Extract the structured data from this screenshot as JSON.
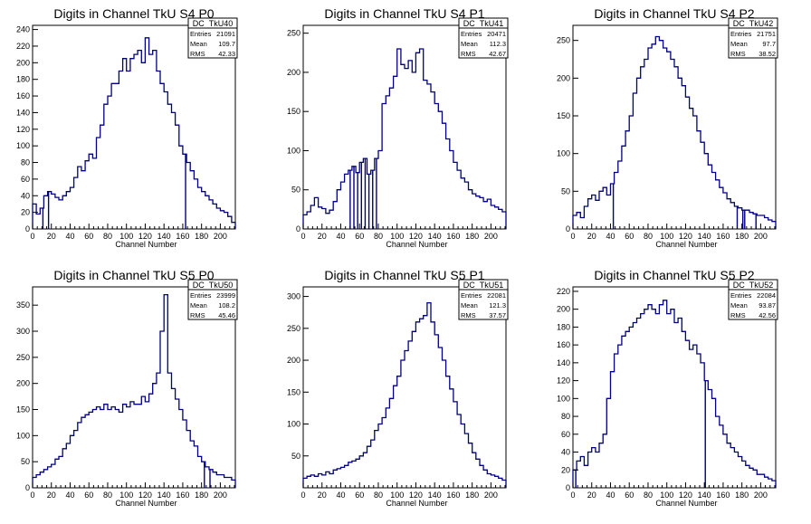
{
  "colors": {
    "line": "#00007f",
    "frame": "#000000",
    "background": "#ffffff"
  },
  "chart_data": [
    {
      "type": "histogram",
      "title": "Digits in Channel TkU S4 P0",
      "xlabel": "Channel Number",
      "ylabel": "",
      "xlim": [
        0,
        216
      ],
      "ylim": [
        0,
        245
      ],
      "xticks": [
        0,
        20,
        40,
        60,
        80,
        100,
        120,
        140,
        160,
        180,
        200
      ],
      "yticks": [
        0,
        20,
        40,
        60,
        80,
        100,
        120,
        140,
        160,
        180,
        200,
        220,
        240
      ],
      "stats": {
        "name": "DC_TkU40",
        "rows": [
          [
            "Entries",
            "21091"
          ],
          [
            "Mean",
            "109.7"
          ],
          [
            "RMS",
            "42.33"
          ]
        ]
      },
      "x": [
        0,
        4,
        8,
        12,
        16,
        20,
        24,
        28,
        32,
        36,
        40,
        44,
        48,
        52,
        56,
        60,
        64,
        68,
        72,
        76,
        80,
        84,
        88,
        92,
        96,
        100,
        104,
        108,
        112,
        116,
        120,
        124,
        128,
        132,
        136,
        140,
        144,
        148,
        152,
        156,
        160,
        164,
        168,
        172,
        176,
        180,
        184,
        188,
        192,
        196,
        200,
        204,
        208,
        212
      ],
      "values": [
        30,
        18,
        25,
        40,
        45,
        42,
        38,
        35,
        40,
        45,
        50,
        62,
        75,
        70,
        82,
        90,
        85,
        110,
        125,
        150,
        160,
        175,
        175,
        190,
        205,
        190,
        205,
        210,
        215,
        200,
        230,
        210,
        215,
        190,
        175,
        165,
        150,
        140,
        125,
        100,
        90,
        80,
        70,
        60,
        50,
        45,
        40,
        35,
        30,
        25,
        22,
        20,
        15,
        8
      ],
      "spikes_down": [
        11,
        17,
        163
      ]
    },
    {
      "type": "histogram",
      "title": "Digits in Channel TkU S4 P1",
      "xlabel": "Channel Number",
      "ylabel": "",
      "xlim": [
        0,
        216
      ],
      "ylim": [
        0,
        260
      ],
      "xticks": [
        0,
        20,
        40,
        60,
        80,
        100,
        120,
        140,
        160,
        180,
        200
      ],
      "yticks": [
        0,
        50,
        100,
        150,
        200,
        250
      ],
      "stats": {
        "name": "DC_TkU41",
        "rows": [
          [
            "Entries",
            "20471"
          ],
          [
            "Mean",
            "112.3"
          ],
          [
            "RMS",
            "42.67"
          ]
        ]
      },
      "x": [
        0,
        4,
        8,
        12,
        16,
        20,
        24,
        28,
        32,
        36,
        40,
        44,
        48,
        52,
        56,
        60,
        64,
        68,
        72,
        76,
        80,
        84,
        88,
        92,
        96,
        100,
        104,
        108,
        112,
        116,
        120,
        124,
        128,
        132,
        136,
        140,
        144,
        148,
        152,
        156,
        160,
        164,
        168,
        172,
        176,
        180,
        184,
        188,
        192,
        196,
        200,
        204,
        208,
        212
      ],
      "values": [
        18,
        22,
        30,
        40,
        28,
        26,
        20,
        24,
        35,
        50,
        60,
        70,
        75,
        80,
        72,
        85,
        90,
        70,
        75,
        90,
        100,
        160,
        170,
        180,
        195,
        230,
        210,
        205,
        215,
        200,
        225,
        230,
        190,
        185,
        175,
        160,
        150,
        135,
        115,
        100,
        85,
        75,
        65,
        60,
        50,
        45,
        42,
        40,
        35,
        38,
        30,
        28,
        25,
        22
      ],
      "spikes_down": [
        50,
        54,
        58,
        62,
        66,
        70,
        74,
        78
      ]
    },
    {
      "type": "histogram",
      "title": "Digits in Channel TkU S4 P2",
      "xlabel": "Channel Number",
      "ylabel": "",
      "xlim": [
        0,
        216
      ],
      "ylim": [
        0,
        270
      ],
      "xticks": [
        0,
        20,
        40,
        60,
        80,
        100,
        120,
        140,
        160,
        180,
        200
      ],
      "yticks": [
        0,
        50,
        100,
        150,
        200,
        250
      ],
      "stats": {
        "name": "DC_TkU42",
        "rows": [
          [
            "Entries",
            "21751"
          ],
          [
            "Mean",
            "97.7"
          ],
          [
            "RMS",
            "38.52"
          ]
        ]
      },
      "x": [
        0,
        4,
        8,
        12,
        16,
        20,
        24,
        28,
        32,
        36,
        40,
        44,
        48,
        52,
        56,
        60,
        64,
        68,
        72,
        76,
        80,
        84,
        88,
        92,
        96,
        100,
        104,
        108,
        112,
        116,
        120,
        124,
        128,
        132,
        136,
        140,
        144,
        148,
        152,
        156,
        160,
        164,
        168,
        172,
        176,
        180,
        184,
        188,
        192,
        196,
        200,
        204,
        208,
        212
      ],
      "values": [
        18,
        22,
        15,
        30,
        40,
        45,
        38,
        50,
        55,
        45,
        60,
        75,
        90,
        110,
        130,
        150,
        180,
        200,
        215,
        225,
        240,
        245,
        255,
        250,
        240,
        235,
        225,
        215,
        200,
        190,
        175,
        160,
        150,
        130,
        115,
        100,
        85,
        75,
        65,
        55,
        48,
        40,
        35,
        30,
        28,
        25,
        25,
        22,
        20,
        18,
        18,
        15,
        12,
        10
      ],
      "spikes_down": [
        43,
        175,
        181,
        183,
        195
      ]
    },
    {
      "type": "histogram",
      "title": "Digits in Channel TkU S5 P0",
      "xlabel": "Channel Number",
      "ylabel": "",
      "xlim": [
        0,
        216
      ],
      "ylim": [
        0,
        385
      ],
      "xticks": [
        0,
        20,
        40,
        60,
        80,
        100,
        120,
        140,
        160,
        180,
        200
      ],
      "yticks": [
        0,
        50,
        100,
        150,
        200,
        250,
        300,
        350
      ],
      "stats": {
        "name": "DC_TkU50",
        "rows": [
          [
            "Entries",
            "23999"
          ],
          [
            "Mean",
            "108.2"
          ],
          [
            "RMS",
            "45.46"
          ]
        ]
      },
      "x": [
        0,
        4,
        8,
        12,
        16,
        20,
        24,
        28,
        32,
        36,
        40,
        44,
        48,
        52,
        56,
        60,
        64,
        68,
        72,
        76,
        80,
        84,
        88,
        92,
        96,
        100,
        104,
        108,
        112,
        116,
        120,
        124,
        128,
        132,
        136,
        140,
        144,
        148,
        152,
        156,
        160,
        164,
        168,
        172,
        176,
        180,
        184,
        188,
        192,
        196,
        200,
        204,
        208,
        212
      ],
      "values": [
        20,
        25,
        30,
        35,
        40,
        45,
        55,
        60,
        75,
        85,
        100,
        110,
        125,
        135,
        140,
        145,
        150,
        155,
        150,
        160,
        150,
        155,
        150,
        145,
        160,
        155,
        165,
        160,
        160,
        175,
        165,
        180,
        200,
        220,
        300,
        370,
        220,
        190,
        170,
        150,
        130,
        110,
        90,
        80,
        60,
        50,
        40,
        35,
        30,
        25,
        25,
        20,
        20,
        15
      ],
      "spikes_down": [
        183,
        189
      ]
    },
    {
      "type": "histogram",
      "title": "Digits in Channel TkU S5 P1",
      "xlabel": "Channel Number",
      "ylabel": "",
      "xlim": [
        0,
        216
      ],
      "ylim": [
        0,
        315
      ],
      "xticks": [
        0,
        20,
        40,
        60,
        80,
        100,
        120,
        140,
        160,
        180,
        200
      ],
      "yticks": [
        50,
        100,
        150,
        200,
        250,
        300
      ],
      "stats": {
        "name": "DC_TkU51",
        "rows": [
          [
            "Entries",
            "22081"
          ],
          [
            "Mean",
            "121.3"
          ],
          [
            "RMS",
            "37.57"
          ]
        ]
      },
      "x": [
        0,
        4,
        8,
        12,
        16,
        20,
        24,
        28,
        32,
        36,
        40,
        44,
        48,
        52,
        56,
        60,
        64,
        68,
        72,
        76,
        80,
        84,
        88,
        92,
        96,
        100,
        104,
        108,
        112,
        116,
        120,
        124,
        128,
        132,
        136,
        140,
        144,
        148,
        152,
        156,
        160,
        164,
        168,
        172,
        176,
        180,
        184,
        188,
        192,
        196,
        200,
        204,
        208,
        212
      ],
      "values": [
        15,
        18,
        20,
        18,
        22,
        20,
        25,
        22,
        28,
        30,
        32,
        35,
        40,
        42,
        45,
        50,
        55,
        65,
        75,
        90,
        100,
        110,
        125,
        140,
        160,
        175,
        200,
        215,
        230,
        245,
        260,
        265,
        270,
        290,
        260,
        240,
        220,
        200,
        175,
        155,
        135,
        115,
        100,
        85,
        70,
        55,
        45,
        35,
        28,
        22,
        20,
        18,
        15,
        12
      ],
      "spikes_down": []
    },
    {
      "type": "histogram",
      "title": "Digits in Channel TkU S5 P2",
      "xlabel": "Channel Number",
      "ylabel": "",
      "xlim": [
        0,
        216
      ],
      "ylim": [
        0,
        225
      ],
      "xticks": [
        0,
        20,
        40,
        60,
        80,
        100,
        120,
        140,
        160,
        180,
        200
      ],
      "yticks": [
        0,
        20,
        40,
        60,
        80,
        100,
        120,
        140,
        160,
        180,
        200,
        220
      ],
      "stats": {
        "name": "DC_TkU52",
        "rows": [
          [
            "Entries",
            "22084"
          ],
          [
            "Mean",
            "93.87"
          ],
          [
            "RMS",
            "42.56"
          ]
        ]
      },
      "x": [
        0,
        4,
        8,
        12,
        16,
        20,
        24,
        28,
        32,
        36,
        40,
        44,
        48,
        52,
        56,
        60,
        64,
        68,
        72,
        76,
        80,
        84,
        88,
        92,
        96,
        100,
        104,
        108,
        112,
        116,
        120,
        124,
        128,
        132,
        136,
        140,
        144,
        148,
        152,
        156,
        160,
        164,
        168,
        172,
        176,
        180,
        184,
        188,
        192,
        196,
        200,
        204,
        208,
        212
      ],
      "values": [
        20,
        30,
        35,
        25,
        40,
        45,
        40,
        50,
        60,
        100,
        130,
        150,
        160,
        170,
        175,
        180,
        185,
        190,
        195,
        200,
        205,
        200,
        195,
        205,
        210,
        195,
        200,
        185,
        190,
        175,
        165,
        155,
        160,
        150,
        140,
        120,
        110,
        100,
        80,
        70,
        60,
        50,
        45,
        40,
        35,
        30,
        25,
        22,
        20,
        15,
        15,
        12,
        10,
        8
      ],
      "spikes_down": [
        3,
        141
      ]
    }
  ]
}
